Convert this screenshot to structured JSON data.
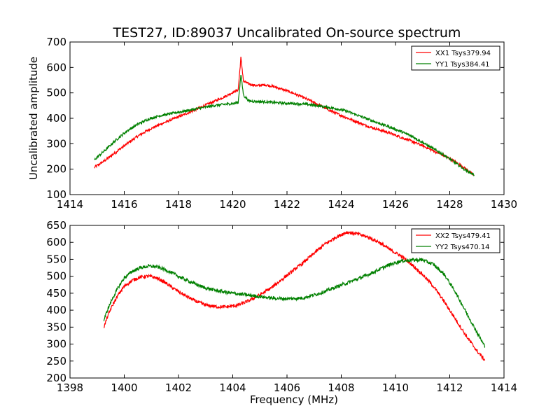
{
  "figure": {
    "title": "TEST27, ID:89037 Uncalibrated On-source spectrum"
  },
  "chart_data": [
    {
      "type": "line",
      "title": "TEST27, ID:89037 Uncalibrated On-source spectrum",
      "xlabel": "",
      "ylabel": "Uncalibrated amplitude",
      "xlim": [
        1414,
        1430
      ],
      "ylim": [
        100,
        700
      ],
      "xticks": [
        1414,
        1416,
        1418,
        1420,
        1422,
        1424,
        1426,
        1428,
        1430
      ],
      "yticks": [
        100,
        200,
        300,
        400,
        500,
        600,
        700
      ],
      "grid": false,
      "legend": "top-right",
      "series": [
        {
          "name": "XX1 Tsys379.94",
          "color": "#ff0000",
          "x": [
            1414.9,
            1415.3,
            1415.7,
            1416.1,
            1416.5,
            1416.9,
            1417.3,
            1417.7,
            1418.1,
            1418.5,
            1418.9,
            1419.3,
            1419.7,
            1420.0,
            1420.2,
            1420.3,
            1420.4,
            1420.6,
            1420.9,
            1421.2,
            1421.5,
            1421.8,
            1422.2,
            1422.6,
            1423.0,
            1423.4,
            1423.8,
            1424.2,
            1424.6,
            1425.0,
            1425.4,
            1425.8,
            1426.2,
            1426.6,
            1427.0,
            1427.4,
            1427.8,
            1428.2,
            1428.6,
            1428.9
          ],
          "values": [
            207,
            235,
            268,
            300,
            330,
            355,
            375,
            393,
            410,
            428,
            447,
            466,
            485,
            502,
            512,
            638,
            545,
            535,
            528,
            532,
            525,
            515,
            500,
            482,
            462,
            440,
            420,
            402,
            385,
            368,
            355,
            342,
            325,
            310,
            292,
            272,
            252,
            230,
            200,
            175
          ]
        },
        {
          "name": "YY1 Tsys384.41",
          "color": "#008000",
          "x": [
            1414.9,
            1415.3,
            1415.7,
            1416.1,
            1416.5,
            1416.9,
            1417.3,
            1417.7,
            1418.1,
            1418.5,
            1418.9,
            1419.3,
            1419.7,
            1420.0,
            1420.2,
            1420.3,
            1420.4,
            1420.6,
            1420.9,
            1421.2,
            1421.5,
            1421.8,
            1422.2,
            1422.6,
            1423.0,
            1423.4,
            1423.8,
            1424.2,
            1424.6,
            1425.0,
            1425.4,
            1425.8,
            1426.2,
            1426.6,
            1427.0,
            1427.4,
            1427.8,
            1428.2,
            1428.6,
            1428.9
          ],
          "values": [
            237,
            275,
            315,
            350,
            377,
            397,
            410,
            418,
            426,
            434,
            442,
            450,
            455,
            458,
            462,
            570,
            490,
            468,
            466,
            465,
            462,
            460,
            458,
            456,
            452,
            445,
            438,
            428,
            412,
            396,
            380,
            365,
            348,
            330,
            305,
            280,
            255,
            225,
            195,
            178
          ]
        }
      ]
    },
    {
      "type": "line",
      "title": "",
      "xlabel": "Frequency (MHz)",
      "ylabel": "",
      "xlim": [
        1398,
        1414
      ],
      "ylim": [
        200,
        650
      ],
      "xticks": [
        1398,
        1400,
        1402,
        1404,
        1406,
        1408,
        1410,
        1412,
        1414
      ],
      "yticks": [
        200,
        250,
        300,
        350,
        400,
        450,
        500,
        550,
        600,
        650
      ],
      "grid": false,
      "legend": "top-right",
      "series": [
        {
          "name": "XX2 Tsys479.41",
          "color": "#ff0000",
          "x": [
            1399.25,
            1399.4,
            1399.6,
            1399.8,
            1400.0,
            1400.3,
            1400.6,
            1400.9,
            1401.2,
            1401.5,
            1401.8,
            1402.2,
            1402.6,
            1403.0,
            1403.4,
            1403.8,
            1404.2,
            1404.6,
            1405.0,
            1405.4,
            1405.8,
            1406.2,
            1406.6,
            1407.0,
            1407.4,
            1407.8,
            1408.2,
            1408.6,
            1409.0,
            1409.4,
            1409.8,
            1410.2,
            1410.6,
            1411.0,
            1411.4,
            1411.8,
            1412.2,
            1412.6,
            1413.0,
            1413.3
          ],
          "values": [
            350,
            385,
            420,
            448,
            470,
            488,
            498,
            500,
            495,
            482,
            465,
            445,
            428,
            415,
            410,
            410,
            415,
            428,
            445,
            465,
            490,
            515,
            540,
            568,
            595,
            615,
            630,
            625,
            615,
            600,
            578,
            560,
            535,
            505,
            470,
            425,
            375,
            325,
            280,
            252
          ]
        },
        {
          "name": "YY2 Tsys470.14",
          "color": "#008000",
          "x": [
            1399.25,
            1399.4,
            1399.6,
            1399.8,
            1400.0,
            1400.3,
            1400.6,
            1400.9,
            1401.2,
            1401.5,
            1401.8,
            1402.2,
            1402.6,
            1403.0,
            1403.4,
            1403.8,
            1404.2,
            1404.6,
            1405.0,
            1405.4,
            1405.8,
            1406.2,
            1406.6,
            1407.0,
            1407.4,
            1407.8,
            1408.2,
            1408.6,
            1409.0,
            1409.4,
            1409.8,
            1410.2,
            1410.6,
            1411.0,
            1411.4,
            1411.8,
            1412.2,
            1412.6,
            1413.0,
            1413.3
          ],
          "values": [
            370,
            405,
            440,
            470,
            495,
            515,
            525,
            530,
            528,
            520,
            508,
            492,
            478,
            465,
            458,
            452,
            448,
            444,
            440,
            436,
            434,
            434,
            436,
            445,
            455,
            468,
            480,
            492,
            505,
            520,
            535,
            545,
            548,
            548,
            535,
            505,
            455,
            395,
            335,
            292
          ]
        }
      ]
    }
  ]
}
